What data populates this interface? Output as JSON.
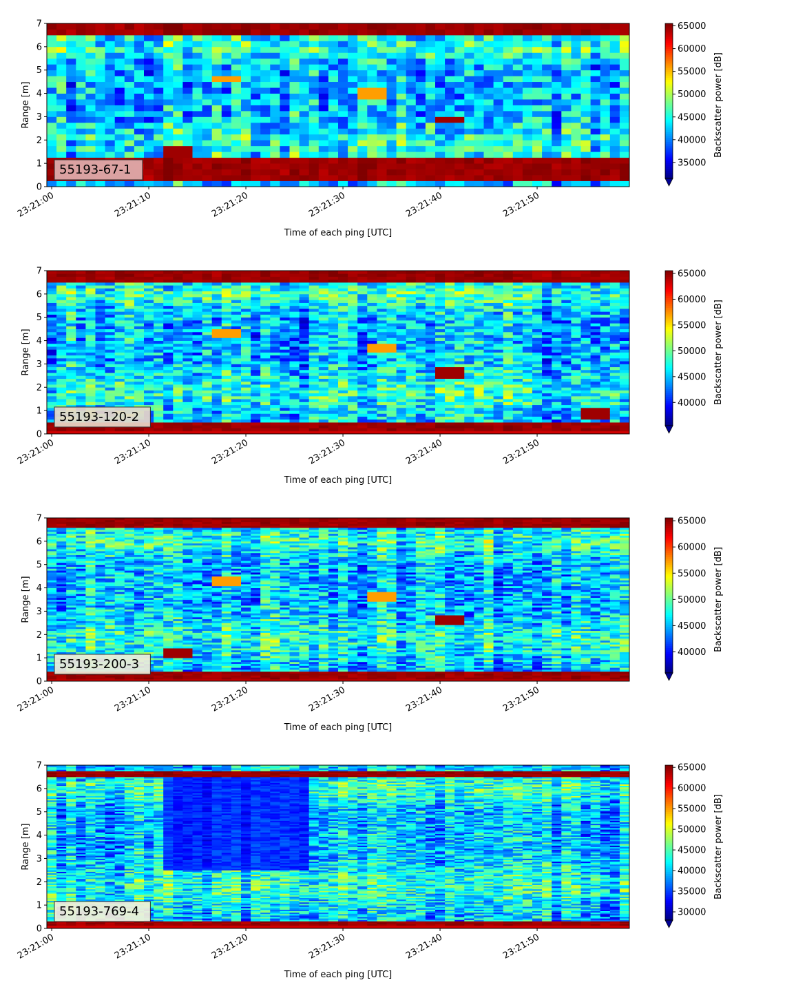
{
  "chart_data": [
    {
      "type": "heatmap",
      "label": "55193-67-1",
      "xlabel": "Time of each ping [UTC]",
      "ylabel": "Range [m]",
      "xticks": [
        "23:21:00",
        "23:21:10",
        "23:21:20",
        "23:21:30",
        "23:21:40",
        "23:21:50"
      ],
      "xlim_seconds_after_23_21_00": [
        -0.5,
        59.5
      ],
      "yticks": [
        0,
        1,
        2,
        3,
        4,
        5,
        6,
        7
      ],
      "ylim": [
        0,
        7
      ],
      "colorbar_label": "Backscatter power [dB]",
      "colorbar_ticks": [
        35000,
        40000,
        45000,
        50000,
        55000,
        60000,
        65000
      ],
      "clim": [
        31500,
        65535
      ],
      "colormap": "jet",
      "colorbar_extend": "min",
      "label_box_color": "#e0b0b0",
      "pings": 60,
      "range_bins": 28,
      "features": [
        {
          "kind": "surface_band",
          "range_m": [
            6.6,
            7.0
          ],
          "level": "high"
        },
        {
          "kind": "bottom_band",
          "range_m": [
            0.2,
            1.2
          ],
          "level": "high"
        },
        {
          "kind": "target",
          "time_s": 13,
          "range_m": 1.5,
          "level": "high"
        },
        {
          "kind": "target",
          "time_s": 18,
          "range_m": 4.6,
          "level": "medium"
        },
        {
          "kind": "target",
          "time_s": 33,
          "range_m": 4.0,
          "level": "medium"
        },
        {
          "kind": "target",
          "time_s": 41,
          "range_m": 2.9,
          "level": "high"
        }
      ]
    },
    {
      "type": "heatmap",
      "label": "55193-120-2",
      "xlabel": "Time of each ping [UTC]",
      "ylabel": "Range [m]",
      "xticks": [
        "23:21:00",
        "23:21:10",
        "23:21:20",
        "23:21:30",
        "23:21:40",
        "23:21:50"
      ],
      "xlim_seconds_after_23_21_00": [
        -0.5,
        59.5
      ],
      "yticks": [
        0,
        1,
        2,
        3,
        4,
        5,
        6,
        7
      ],
      "ylim": [
        0,
        7
      ],
      "colorbar_label": "Backscatter power [dB]",
      "colorbar_ticks": [
        40000,
        45000,
        50000,
        55000,
        60000,
        65000
      ],
      "clim": [
        35500,
        65535
      ],
      "colormap": "jet",
      "colorbar_extend": "min",
      "label_box_color": "#e8d8c8",
      "pings": 60,
      "range_bins": 56,
      "features": [
        {
          "kind": "surface_band",
          "range_m": [
            6.5,
            7.0
          ],
          "level": "high"
        },
        {
          "kind": "bottom_band",
          "range_m": [
            0.1,
            0.55
          ],
          "level": "high"
        },
        {
          "kind": "target",
          "time_s": 18,
          "range_m": 4.3,
          "level": "medium"
        },
        {
          "kind": "target",
          "time_s": 34,
          "range_m": 3.7,
          "level": "medium"
        },
        {
          "kind": "target",
          "time_s": 41,
          "range_m": 2.65,
          "level": "high"
        },
        {
          "kind": "target",
          "time_s": 56,
          "range_m": 0.85,
          "level": "high"
        }
      ]
    },
    {
      "type": "heatmap",
      "label": "55193-200-3",
      "xlabel": "Time of each ping [UTC]",
      "ylabel": "Range [m]",
      "xticks": [
        "23:21:00",
        "23:21:10",
        "23:21:20",
        "23:21:30",
        "23:21:40",
        "23:21:50"
      ],
      "xlim_seconds_after_23_21_00": [
        -0.5,
        59.5
      ],
      "yticks": [
        0,
        1,
        2,
        3,
        4,
        5,
        6,
        7
      ],
      "ylim": [
        0,
        7
      ],
      "colorbar_label": "Backscatter power [dB]",
      "colorbar_ticks": [
        40000,
        45000,
        50000,
        55000,
        60000,
        65000
      ],
      "clim": [
        36000,
        65535
      ],
      "colormap": "jet",
      "colorbar_extend": "min",
      "label_box_color": "#f0ecd8",
      "pings": 60,
      "range_bins": 84,
      "features": [
        {
          "kind": "surface_band",
          "range_m": [
            6.6,
            7.0
          ],
          "level": "high"
        },
        {
          "kind": "bottom_band",
          "range_m": [
            0.1,
            0.4
          ],
          "level": "high"
        },
        {
          "kind": "target",
          "time_s": 18,
          "range_m": 4.3,
          "level": "medium"
        },
        {
          "kind": "target",
          "time_s": 34,
          "range_m": 3.6,
          "level": "medium"
        },
        {
          "kind": "target",
          "time_s": 41,
          "range_m": 2.6,
          "level": "high"
        },
        {
          "kind": "target",
          "time_s": 13,
          "range_m": 1.2,
          "level": "high"
        }
      ]
    },
    {
      "type": "heatmap",
      "label": "55193-769-4",
      "xlabel": "Time of each ping [UTC]",
      "ylabel": "Range [m]",
      "xticks": [
        "23:21:00",
        "23:21:10",
        "23:21:20",
        "23:21:30",
        "23:21:40",
        "23:21:50"
      ],
      "xlim_seconds_after_23_21_00": [
        -0.5,
        59.5
      ],
      "yticks": [
        0,
        1,
        2,
        3,
        4,
        5,
        6,
        7
      ],
      "ylim": [
        0,
        7
      ],
      "colorbar_label": "Backscatter power [dB]",
      "colorbar_ticks": [
        30000,
        35000,
        40000,
        45000,
        50000,
        55000,
        60000,
        65000
      ],
      "clim": [
        28000,
        65535
      ],
      "colormap": "jet",
      "colorbar_extend": "min",
      "label_box_color": "#f4f0d8",
      "pings": 60,
      "range_bins": 112,
      "features": [
        {
          "kind": "surface_band",
          "range_m": [
            6.5,
            6.75
          ],
          "level": "high"
        },
        {
          "kind": "bottom_band",
          "range_m": [
            0.15,
            0.3
          ],
          "level": "high"
        },
        {
          "kind": "quiet_region",
          "time_s": [
            12,
            26
          ],
          "range_m": [
            2.5,
            6.5
          ],
          "level": "low"
        }
      ]
    }
  ]
}
